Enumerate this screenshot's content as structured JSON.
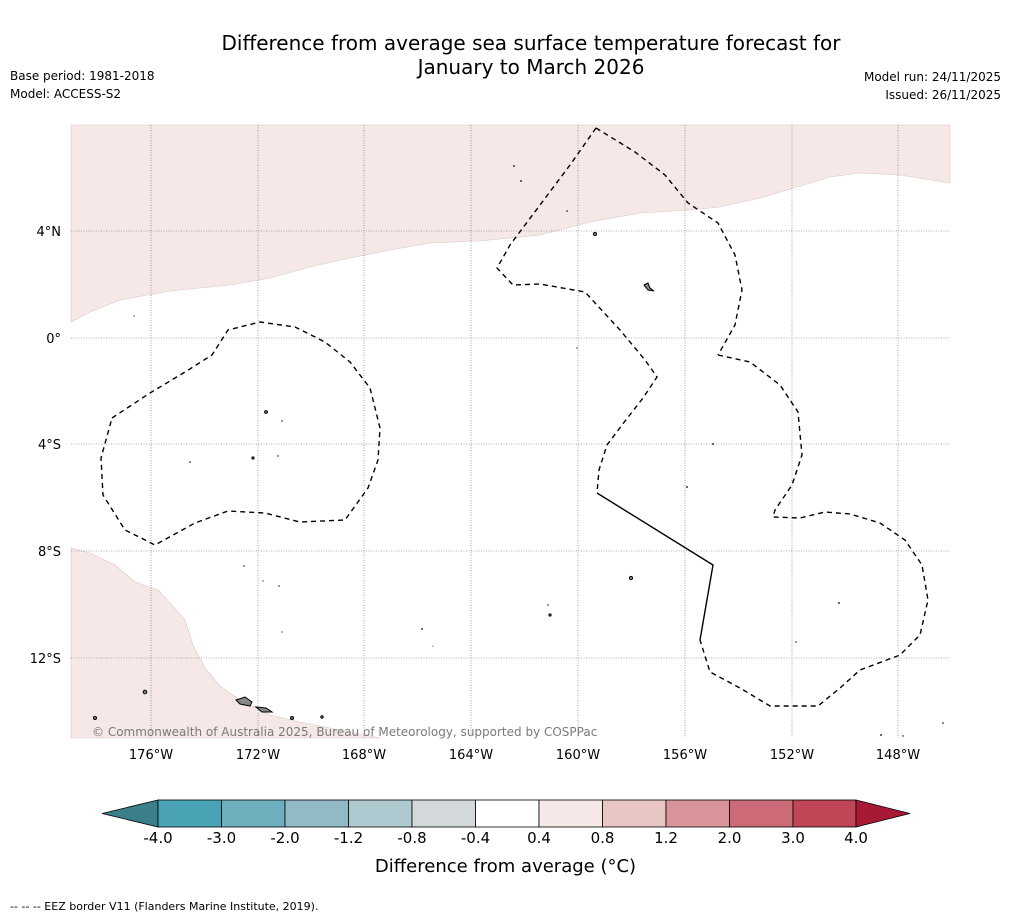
{
  "header": {
    "title_line1": "Difference from average sea surface temperature forecast for",
    "title_line2": "January to March 2026",
    "base_period": "Base period: 1981-2018",
    "model": "Model: ACCESS-S2",
    "model_run": "Model run: 24/11/2025",
    "issued": "Issued: 26/11/2025"
  },
  "map": {
    "longitude_labels": [
      "176°W",
      "172°W",
      "168°W",
      "164°W",
      "160°W",
      "156°W",
      "152°W",
      "148°W"
    ],
    "latitude_labels": [
      "4°N",
      "0°",
      "4°S",
      "8°S",
      "12°S"
    ],
    "copyright": "© Commonwealth of Australia 2025, Bureau of Meteorology, supported by COSPPac",
    "colors": {
      "warm_anomaly_fill": "#f5e8e7",
      "land": "#888888",
      "gridline": "#666666",
      "eez_border": "#000000"
    }
  },
  "colorbar": {
    "tick_labels": [
      "-4.0",
      "-3.0",
      "-2.0",
      "-1.2",
      "-0.8",
      "-0.4",
      "0.4",
      "0.8",
      "1.2",
      "2.0",
      "3.0",
      "4.0"
    ],
    "colors": [
      "#3a7f8a",
      "#4aa3b4",
      "#6eafbd",
      "#92bac6",
      "#afc9d0",
      "#d3d8da",
      "#ffffff",
      "#f5e8e7",
      "#e8c6c3",
      "#d9949a",
      "#cc6b77",
      "#c04657",
      "#a81935"
    ],
    "label": "Difference from average (°C)"
  },
  "footnote": "--  --  -- EEZ border V11 (Flanders Marine Institute, 2019)."
}
